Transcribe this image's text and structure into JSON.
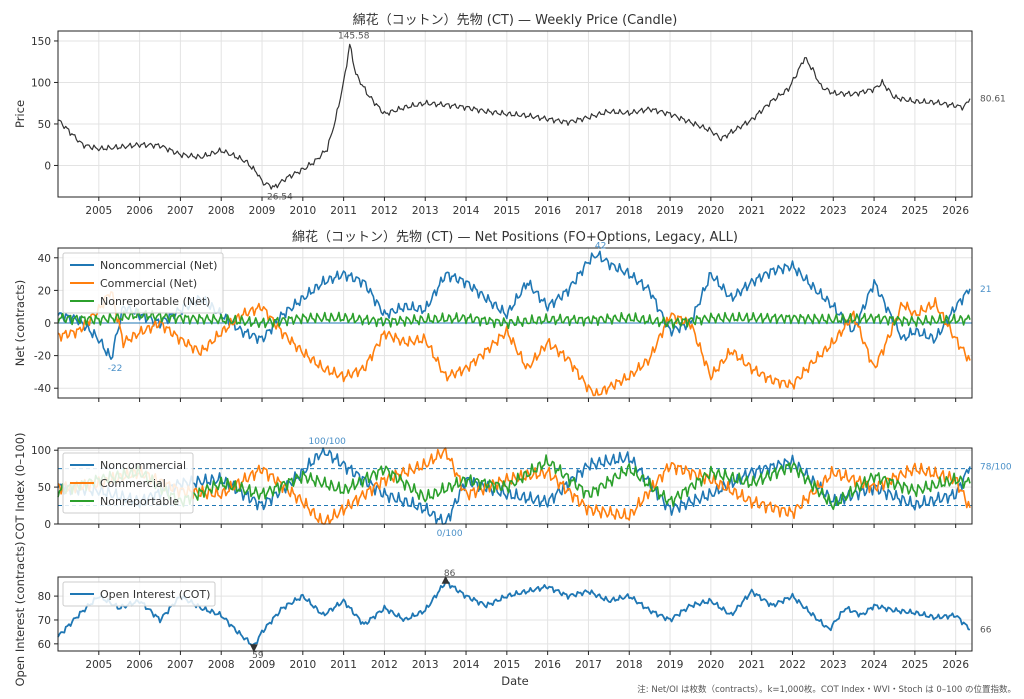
{
  "chart_data": [
    {
      "type": "line",
      "panel": "price",
      "title": "綿花（コットン）先物 (CT) — Weekly Price (Candle)",
      "xlabel": "",
      "ylabel": "Price",
      "xlim": [
        2004.0,
        2026.4
      ],
      "ylim": [
        -38,
        162
      ],
      "yticks": [
        0,
        50,
        100,
        150
      ],
      "xticks": [
        2005,
        2006,
        2007,
        2008,
        2009,
        2010,
        2011,
        2012,
        2013,
        2014,
        2015,
        2016,
        2017,
        2018,
        2019,
        2020,
        2021,
        2022,
        2023,
        2024,
        2025,
        2026
      ],
      "grid": true,
      "series": [
        {
          "color": "#333333",
          "x": [
            2004.0,
            2004.3,
            2004.6,
            2005.0,
            2005.5,
            2006.0,
            2006.5,
            2007.0,
            2007.5,
            2008.0,
            2008.3,
            2008.6,
            2008.9,
            2009.0,
            2009.3,
            2009.6,
            2010.0,
            2010.3,
            2010.6,
            2010.8,
            2011.0,
            2011.15,
            2011.3,
            2011.6,
            2012.0,
            2012.5,
            2013.0,
            2013.5,
            2014.0,
            2014.5,
            2015.0,
            2015.5,
            2016.0,
            2016.5,
            2017.0,
            2017.5,
            2018.0,
            2018.5,
            2019.0,
            2019.5,
            2020.0,
            2020.25,
            2020.5,
            2021.0,
            2021.5,
            2021.9,
            2022.1,
            2022.3,
            2022.5,
            2022.7,
            2023.0,
            2023.5,
            2024.0,
            2024.2,
            2024.5,
            2025.0,
            2025.5,
            2026.0,
            2026.2,
            2026.35
          ],
          "y": [
            55,
            40,
            25,
            20,
            22,
            25,
            24,
            13,
            10,
            18,
            12,
            5,
            -10,
            -20,
            -26.54,
            -15,
            -5,
            5,
            20,
            55,
            100,
            145.58,
            110,
            85,
            62,
            70,
            75,
            73,
            70,
            65,
            62,
            60,
            56,
            52,
            58,
            65,
            63,
            68,
            62,
            52,
            42,
            32,
            40,
            55,
            78,
            92,
            110,
            130,
            115,
            95,
            87,
            86,
            92,
            100,
            82,
            77,
            76,
            72,
            70,
            80.61
          ]
        }
      ],
      "annotations": [
        {
          "text": "145.58",
          "x": 2011.15,
          "y": 145.58
        },
        {
          "text": "-26.54",
          "x": 2009.3,
          "y": -26.54
        },
        {
          "text": "80.61",
          "x": 2026.35,
          "y": 80.61
        }
      ]
    },
    {
      "type": "line",
      "panel": "net",
      "title": "綿花（コットン）先物 (CT) — Net Positions (FO+Options, Legacy, ALL)",
      "xlabel": "",
      "ylabel": "Net (contracts)",
      "xlim": [
        2004.0,
        2026.4
      ],
      "ylim": [
        -46,
        46
      ],
      "yticks": [
        -40,
        -20,
        0,
        20,
        40
      ],
      "grid": true,
      "legend": "upper-left",
      "series": [
        {
          "name": "Noncommercial (Net)",
          "color": "#1f77b4",
          "x": [
            2004.0,
            2004.5,
            2005.0,
            2005.3,
            2005.6,
            2006.0,
            2006.5,
            2007.0,
            2007.5,
            2008.0,
            2008.5,
            2009.0,
            2009.5,
            2010.0,
            2010.5,
            2011.0,
            2011.5,
            2012.0,
            2012.5,
            2013.0,
            2013.5,
            2014.0,
            2014.5,
            2015.0,
            2015.5,
            2016.0,
            2016.5,
            2017.0,
            2017.2,
            2017.6,
            2018.0,
            2018.5,
            2019.0,
            2019.5,
            2020.0,
            2020.5,
            2021.0,
            2021.5,
            2022.0,
            2022.5,
            2023.0,
            2023.5,
            2024.0,
            2024.3,
            2024.7,
            2025.0,
            2025.5,
            2026.0,
            2026.35
          ],
          "y": [
            5,
            2,
            -10,
            -22,
            10,
            5,
            0,
            8,
            15,
            5,
            -5,
            -10,
            5,
            15,
            25,
            30,
            25,
            5,
            10,
            8,
            30,
            25,
            15,
            5,
            25,
            10,
            20,
            38,
            42,
            35,
            30,
            20,
            -5,
            0,
            30,
            15,
            25,
            32,
            35,
            22,
            10,
            -5,
            25,
            10,
            -10,
            -5,
            -10,
            10,
            21
          ]
        },
        {
          "name": "Commercial (Net)",
          "color": "#ff7f0e",
          "x": [
            2004.0,
            2004.5,
            2005.0,
            2005.3,
            2005.6,
            2006.0,
            2006.5,
            2007.0,
            2007.5,
            2008.0,
            2008.5,
            2009.0,
            2009.5,
            2010.0,
            2010.5,
            2011.0,
            2011.5,
            2012.0,
            2012.5,
            2013.0,
            2013.5,
            2014.0,
            2014.5,
            2015.0,
            2015.5,
            2016.0,
            2016.5,
            2017.0,
            2017.2,
            2017.6,
            2018.0,
            2018.5,
            2019.0,
            2019.5,
            2020.0,
            2020.5,
            2021.0,
            2021.5,
            2022.0,
            2022.5,
            2023.0,
            2023.5,
            2024.0,
            2024.3,
            2024.7,
            2025.0,
            2025.5,
            2026.0,
            2026.35
          ],
          "y": [
            -8,
            -5,
            8,
            20,
            -12,
            -6,
            0,
            -10,
            -18,
            -6,
            5,
            10,
            -6,
            -18,
            -28,
            -33,
            -28,
            -6,
            -12,
            -10,
            -33,
            -28,
            -17,
            -5,
            -28,
            -12,
            -22,
            -40,
            -44,
            -38,
            -33,
            -22,
            5,
            0,
            -33,
            -17,
            -28,
            -35,
            -38,
            -24,
            -12,
            5,
            -28,
            -12,
            12,
            5,
            12,
            -10,
            -23
          ]
        },
        {
          "name": "Nonreportable (Net)",
          "color": "#2ca02c",
          "x": [
            2004.0,
            2005.0,
            2006.0,
            2007.0,
            2008.0,
            2009.0,
            2010.0,
            2011.0,
            2012.0,
            2013.0,
            2014.0,
            2015.0,
            2016.0,
            2017.0,
            2018.0,
            2019.0,
            2020.0,
            2021.0,
            2022.0,
            2023.0,
            2024.0,
            2025.0,
            2026.0,
            2026.35
          ],
          "y": [
            3,
            2,
            5,
            3,
            2,
            0,
            3,
            3,
            1,
            2,
            3,
            0,
            2,
            2,
            3,
            0,
            3,
            3,
            3,
            2,
            3,
            1,
            2,
            2
          ]
        }
      ],
      "annotations": [
        {
          "text": "42",
          "x": 2017.2,
          "y": 42
        },
        {
          "text": "-22",
          "x": 2005.3,
          "y": -22
        },
        {
          "text": "21",
          "x": 2026.35,
          "y": 21
        }
      ]
    },
    {
      "type": "line",
      "panel": "cot-index",
      "title": "",
      "xlabel": "",
      "ylabel": "COT Index (0–100)",
      "xlim": [
        2004.0,
        2026.4
      ],
      "ylim": [
        0,
        103
      ],
      "yticks": [
        0,
        50,
        100
      ],
      "reference_lines": [
        25,
        75
      ],
      "grid": true,
      "legend": "upper-left",
      "series": [
        {
          "name": "Noncommercial",
          "color": "#1f77b4",
          "x": [
            2004.0,
            2005.0,
            2006.0,
            2007.0,
            2008.0,
            2009.0,
            2010.0,
            2010.5,
            2011.0,
            2012.0,
            2013.0,
            2013.5,
            2014.0,
            2015.0,
            2016.0,
            2017.0,
            2018.0,
            2019.0,
            2020.0,
            2021.0,
            2022.0,
            2023.0,
            2024.0,
            2025.0,
            2026.0,
            2026.35
          ],
          "y": [
            50,
            45,
            30,
            55,
            60,
            25,
            70,
            100,
            80,
            40,
            20,
            0,
            60,
            40,
            30,
            80,
            90,
            20,
            40,
            70,
            85,
            30,
            50,
            25,
            40,
            78
          ]
        },
        {
          "name": "Commercial",
          "color": "#ff7f0e",
          "x": [
            2004.0,
            2005.0,
            2006.0,
            2007.0,
            2008.0,
            2009.0,
            2010.0,
            2010.5,
            2011.0,
            2012.0,
            2013.0,
            2013.5,
            2014.0,
            2015.0,
            2016.0,
            2017.0,
            2018.0,
            2019.0,
            2020.0,
            2021.0,
            2022.0,
            2023.0,
            2024.0,
            2025.0,
            2026.0,
            2026.35
          ],
          "y": [
            50,
            55,
            70,
            45,
            40,
            75,
            30,
            0,
            20,
            60,
            80,
            100,
            40,
            60,
            70,
            20,
            10,
            80,
            60,
            30,
            15,
            70,
            50,
            75,
            60,
            22
          ]
        },
        {
          "name": "Nonreportable",
          "color": "#2ca02c",
          "x": [
            2004.0,
            2005.0,
            2006.0,
            2007.0,
            2008.0,
            2009.0,
            2010.0,
            2011.0,
            2012.0,
            2013.0,
            2014.0,
            2015.0,
            2016.0,
            2017.0,
            2018.0,
            2019.0,
            2020.0,
            2021.0,
            2022.0,
            2023.0,
            2024.0,
            2025.0,
            2026.0,
            2026.35
          ],
          "y": [
            45,
            60,
            70,
            30,
            55,
            40,
            65,
            45,
            75,
            35,
            60,
            50,
            85,
            40,
            75,
            30,
            70,
            55,
            80,
            25,
            65,
            45,
            60,
            55
          ]
        }
      ],
      "annotations": [
        {
          "text": "100/100",
          "x": 2010.5,
          "y": 100
        },
        {
          "text": "0/100",
          "x": 2013.5,
          "y": 0
        },
        {
          "text": "78/100",
          "x": 2026.35,
          "y": 78
        }
      ]
    },
    {
      "type": "line",
      "panel": "open-interest",
      "title": "",
      "xlabel": "Date",
      "ylabel": "Open Interest (contracts)",
      "xlim": [
        2004.0,
        2026.4
      ],
      "ylim": [
        57,
        88
      ],
      "yticks": [
        60,
        70,
        80
      ],
      "xticks": [
        2005,
        2006,
        2007,
        2008,
        2009,
        2010,
        2011,
        2012,
        2013,
        2014,
        2015,
        2016,
        2017,
        2018,
        2019,
        2020,
        2021,
        2022,
        2023,
        2024,
        2025,
        2026
      ],
      "grid": true,
      "legend": "upper-left",
      "series": [
        {
          "name": "Open Interest (COT)",
          "color": "#1f77b4",
          "x": [
            2004.0,
            2004.5,
            2005.0,
            2005.5,
            2006.0,
            2006.5,
            2007.0,
            2007.5,
            2008.0,
            2008.4,
            2008.8,
            2009.0,
            2009.5,
            2010.0,
            2010.5,
            2011.0,
            2011.5,
            2012.0,
            2012.5,
            2013.0,
            2013.5,
            2014.0,
            2014.5,
            2015.0,
            2015.5,
            2016.0,
            2016.5,
            2017.0,
            2017.5,
            2018.0,
            2018.5,
            2019.0,
            2019.5,
            2020.0,
            2020.5,
            2021.0,
            2021.5,
            2022.0,
            2022.5,
            2022.9,
            2023.3,
            2023.7,
            2024.0,
            2024.5,
            2025.0,
            2025.5,
            2026.0,
            2026.35
          ],
          "y": [
            63,
            72,
            80,
            75,
            78,
            70,
            80,
            75,
            72,
            65,
            59,
            65,
            75,
            80,
            72,
            78,
            68,
            75,
            70,
            74,
            86,
            80,
            76,
            80,
            82,
            84,
            80,
            82,
            78,
            80,
            74,
            70,
            76,
            78,
            72,
            82,
            76,
            80,
            72,
            66,
            75,
            72,
            76,
            74,
            73,
            71,
            72,
            66
          ]
        }
      ],
      "annotations": [
        {
          "text": "86",
          "x": 2013.5,
          "y": 86
        },
        {
          "text": "59",
          "x": 2008.8,
          "y": 59
        },
        {
          "text": "66",
          "x": 2026.35,
          "y": 66
        }
      ]
    }
  ],
  "footnote": "注: Net/OI は枚数（contracts）。k=1,000枚。COT Index・WVI・Stoch は 0–100 の位置指数。"
}
